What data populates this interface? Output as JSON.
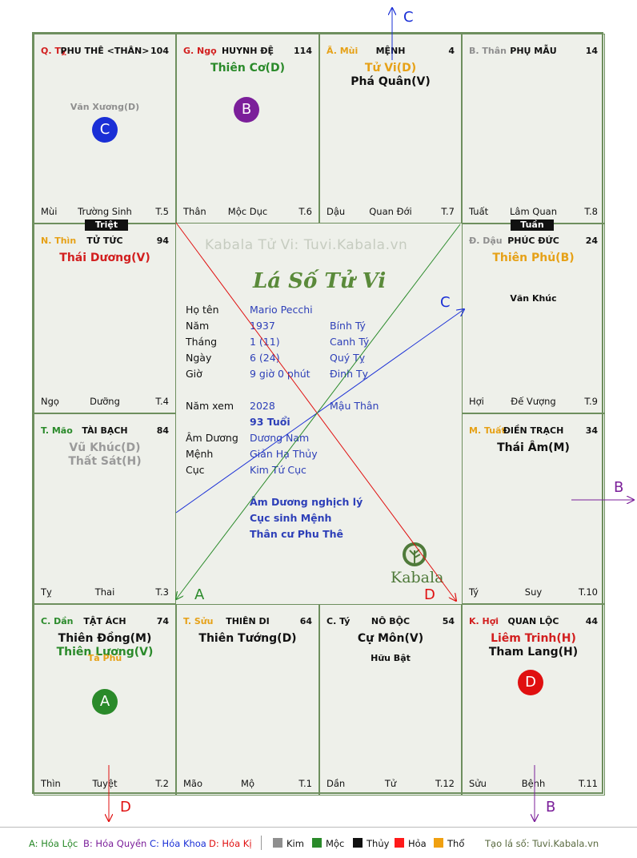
{
  "palaces": [
    {
      "id": "ty",
      "branch": "Q. Tỵ",
      "branch_color": "#d21f1f",
      "title": "PHU THÊ <THÂN>",
      "num": "104",
      "stars": [],
      "minor": [
        {
          "text": "Văn Xương(D)",
          "color": "#8f8f8f"
        }
      ],
      "foot": {
        "left": "Mùi",
        "center": "Trường Sinh",
        "right": "T.5"
      }
    },
    {
      "id": "ngo",
      "branch": "G. Ngọ",
      "branch_color": "#d21f1f",
      "title": "HUYNH ĐỆ",
      "num": "114",
      "stars": [
        {
          "text": "Thiên Cơ(D)",
          "color": "#2a8a2a"
        }
      ],
      "minor": [],
      "foot": {
        "left": "Thân",
        "center": "Mộc Dục",
        "right": "T.6"
      }
    },
    {
      "id": "mui",
      "branch": "Ã. Mùi",
      "branch_color": "#e6a117",
      "title": "MỆNH",
      "num": "4",
      "stars": [
        {
          "text": "Tử Vi(D)",
          "color": "#e6a117"
        },
        {
          "text": "Phá Quân(V)",
          "color": "#111111"
        }
      ],
      "minor": [],
      "foot": {
        "left": "Dậu",
        "center": "Quan Đới",
        "right": "T.7"
      }
    },
    {
      "id": "than",
      "branch": "B. Thân",
      "branch_color": "#8f8f8f",
      "title": "PHỤ MẪU",
      "num": "14",
      "stars": [],
      "minor": [],
      "foot": {
        "left": "Tuất",
        "center": "Lâm Quan",
        "right": "T.8"
      }
    },
    {
      "id": "thin",
      "branch": "N. Thìn",
      "branch_color": "#e6a117",
      "title": "TỬ TỨC",
      "num": "94",
      "stars": [
        {
          "text": "Thái Dương(V)",
          "color": "#d21f1f"
        }
      ],
      "minor": [],
      "foot": {
        "left": "Ngọ",
        "center": "Dưỡng",
        "right": "T.4"
      }
    },
    {
      "id": "dau",
      "branch": "Đ. Dậu",
      "branch_color": "#8f8f8f",
      "title": "PHÚC ĐỨC",
      "num": "24",
      "stars": [
        {
          "text": "Thiên Phủ(B)",
          "color": "#e6a117"
        }
      ],
      "minor": [
        {
          "text": "Văn Khúc",
          "color": "#111111"
        }
      ],
      "foot": {
        "left": "Hợi",
        "center": "Đế Vượng",
        "right": "T.9"
      }
    },
    {
      "id": "mao",
      "branch": "T. Mão",
      "branch_color": "#2a8a2a",
      "title": "TÀI BẠCH",
      "num": "84",
      "stars": [
        {
          "text": "Vũ Khúc(D)",
          "color": "#9a9a9a"
        },
        {
          "text": "Thất Sát(H)",
          "color": "#9a9a9a"
        }
      ],
      "minor": [],
      "foot": {
        "left": "Tỵ",
        "center": "Thai",
        "right": "T.3"
      }
    },
    {
      "id": "tuat",
      "branch": "M. Tuất",
      "branch_color": "#e6a117",
      "title": "ĐIỀN TRẠCH",
      "num": "34",
      "stars": [
        {
          "text": "Thái Âm(M)",
          "color": "#111111"
        }
      ],
      "minor": [],
      "foot": {
        "left": "Tý",
        "center": "Suy",
        "right": "T.10"
      }
    },
    {
      "id": "dan",
      "branch": "C. Dần",
      "branch_color": "#2a8a2a",
      "title": "TẬT ÁCH",
      "num": "74",
      "stars": [
        {
          "text": "Thiên Đồng(M)",
          "color": "#111111"
        },
        {
          "text": "Thiên Lương(V)",
          "color": "#2a8a2a"
        }
      ],
      "minor": [
        {
          "text": "Tả Phù",
          "color": "#e6a117"
        }
      ],
      "foot": {
        "left": "Thìn",
        "center": "Tuyệt",
        "right": "T.2"
      }
    },
    {
      "id": "suu",
      "branch": "T. Sửu",
      "branch_color": "#e6a117",
      "title": "THIÊN DI",
      "num": "64",
      "stars": [
        {
          "text": "Thiên Tướng(D)",
          "color": "#111111"
        }
      ],
      "minor": [],
      "foot": {
        "left": "Mão",
        "center": "Mộ",
        "right": "T.1"
      }
    },
    {
      "id": "tyr",
      "branch": "C. Tý",
      "branch_color": "#111111",
      "title": "NÔ BỘC",
      "num": "54",
      "stars": [
        {
          "text": "Cự Môn(V)",
          "color": "#111111"
        }
      ],
      "minor": [
        {
          "text": "Hữu Bật",
          "color": "#111111"
        }
      ],
      "foot": {
        "left": "Dần",
        "center": "Tử",
        "right": "T.12"
      }
    },
    {
      "id": "hoi",
      "branch": "K. Hợi",
      "branch_color": "#d21f1f",
      "title": "QUAN LỘC",
      "num": "44",
      "stars": [
        {
          "text": "Liêm Trinh(H)",
          "color": "#d21f1f"
        },
        {
          "text": "Tham Lang(H)",
          "color": "#111111"
        }
      ],
      "minor": [],
      "foot": {
        "left": "Sửu",
        "center": "Bệnh",
        "right": "T.11"
      }
    }
  ],
  "tags": {
    "triet": "Triệt",
    "tuan": "Tuần"
  },
  "circles": {
    "c": "C",
    "b": "B",
    "a": "A",
    "d": "D"
  },
  "colors": {
    "hoa_loc": "#2a8a2a",
    "hoa_quyen": "#7b1f9a",
    "hoa_khoa": "#1a2fd6",
    "hoa_ki": "#e01010"
  },
  "center": {
    "watermark": "Kabala Tử Vi: Tuvi.Kabala.vn",
    "title": "Lá Số Tử Vi",
    "logo_text": "Kabala",
    "rows": [
      {
        "k": "Họ tên",
        "v1": "Mario Pecchi",
        "v2": ""
      },
      {
        "k": "Năm",
        "v1": "1937",
        "v2": "Bính Tý"
      },
      {
        "k": "Tháng",
        "v1": "1  (11)",
        "v2": "Canh Tý"
      },
      {
        "k": "Ngày",
        "v1": "6  (24)",
        "v2": "Quý Tỵ"
      },
      {
        "k": "Giờ",
        "v1": "9 giờ 0 phút",
        "v2": "Đinh Tỵ"
      },
      {
        "k": "Năm xem",
        "v1": "2028",
        "v2": "Mậu Thân"
      },
      {
        "k": "",
        "v1": "93 Tuổi",
        "v2": ""
      },
      {
        "k": "Âm Dương",
        "v1": "Dương Nam",
        "v2": ""
      },
      {
        "k": "Mệnh",
        "v1": "Giản Hạ Thủy",
        "v2": ""
      },
      {
        "k": "Cục",
        "v1": "Kim Tứ Cục",
        "v2": ""
      }
    ],
    "notes": [
      "Âm Dương nghịch lý",
      "Cục sinh Mệnh",
      "Thân cư Phu Thê"
    ]
  },
  "arrows": {
    "c_top": "C",
    "c_mid": "C",
    "b_right": "B",
    "a_mid": "A",
    "d_mid": "D",
    "d_bottom": "D",
    "b_bottom": "B"
  },
  "legend": {
    "a": "A: Hóa Lộc",
    "b": "B: Hóa Quyền",
    "c": "C: Hóa Khoa",
    "d": "D: Hóa Kị",
    "kim": "Kim",
    "moc": "Mộc",
    "thuy": "Thủy",
    "hoa": "Hỏa",
    "tho": "Thổ",
    "site": "Tạo lá số: Tuvi.Kabala.vn",
    "colors": {
      "kim": "#8f8f8f",
      "moc": "#2a8a2a",
      "thuy": "#111111",
      "hoa": "#ff1a1a",
      "tho": "#f0a010"
    }
  }
}
